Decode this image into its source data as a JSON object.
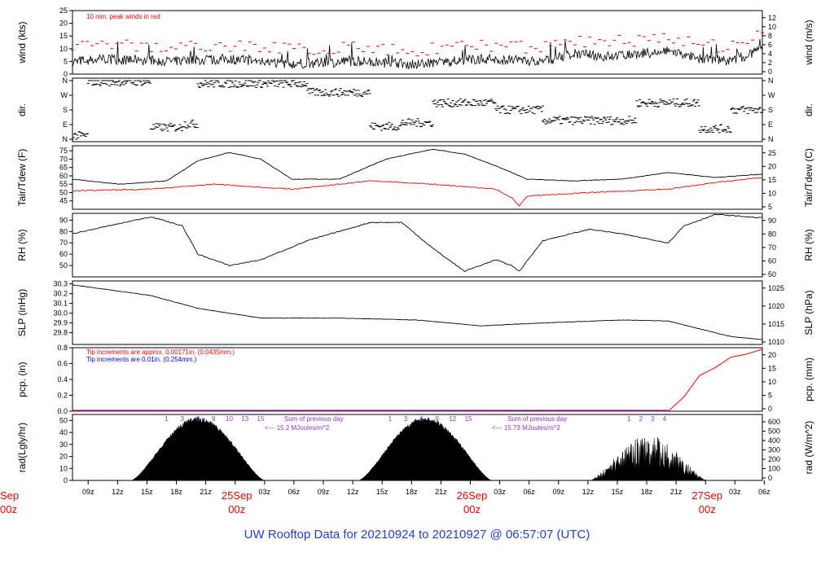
{
  "title": "UW Rooftop Data for 20210924  to  20210927 @ 06:57:07  (UTC)",
  "colors": {
    "frame": "#000000",
    "peak": "#ff0000",
    "precip_blue": "#0000ff",
    "rad_notes": "#9933cc",
    "day_labels": "#ff0000",
    "title": "#1f3fd6"
  },
  "time_axis": {
    "ticks": [
      "09z",
      "12z",
      "15z",
      "18z",
      "21z",
      "25Sep",
      "03z",
      "06z",
      "09z",
      "12z",
      "15z",
      "18z",
      "21z",
      "26Sep",
      "03z",
      "06z",
      "09z",
      "12z",
      "15z",
      "18z",
      "21z",
      "27Sep",
      "03z",
      "06z"
    ],
    "day_subs": [
      "00z",
      "00z",
      "00z"
    ],
    "left_cut_day": "Sep",
    "left_cut_sub": "00z"
  },
  "chart_data": [
    {
      "type": "line",
      "ylabel_left": "wind (kts)",
      "ylabel_right": "wind (m/s)",
      "ylim": [
        0,
        25
      ],
      "left_ticks": [
        "0",
        "5",
        "10",
        "15",
        "20",
        "25"
      ],
      "right_ticks": [
        "0",
        "2",
        "4",
        "6",
        "8",
        "10",
        "12"
      ],
      "annotation": "10 min. peak winds in red",
      "series_keypoints": [
        [
          0,
          5
        ],
        [
          4,
          6
        ],
        [
          12,
          5
        ],
        [
          20,
          6
        ],
        [
          28,
          4
        ],
        [
          36,
          5
        ],
        [
          44,
          4
        ],
        [
          52,
          6
        ],
        [
          60,
          5
        ],
        [
          64,
          8
        ],
        [
          68,
          7
        ],
        [
          76,
          9
        ],
        [
          80,
          6
        ],
        [
          84,
          5
        ],
        [
          88,
          10
        ]
      ]
    },
    {
      "type": "scatter",
      "ylabel_left": "dir.",
      "ylabel_right": "dir.",
      "left_ticks": [
        "N",
        "E",
        "S",
        "W",
        "N"
      ],
      "right_ticks": [
        "N",
        "E",
        "S",
        "W",
        "N"
      ]
    },
    {
      "type": "line",
      "ylabel_left": "Tair/Tdew (F)",
      "ylabel_right": "Tair/Tdew (C)",
      "ylim": [
        40,
        78
      ],
      "left_ticks": [
        "45",
        "50",
        "55",
        "60",
        "65",
        "70",
        "75"
      ],
      "right_ticks": [
        "5",
        "10",
        "15",
        "20",
        "25"
      ],
      "tair_keypoints": [
        [
          0,
          58
        ],
        [
          6,
          55
        ],
        [
          12,
          57
        ],
        [
          16,
          69
        ],
        [
          20,
          74
        ],
        [
          24,
          70
        ],
        [
          28,
          58
        ],
        [
          34,
          58
        ],
        [
          40,
          70
        ],
        [
          46,
          76
        ],
        [
          50,
          73
        ],
        [
          54,
          66
        ],
        [
          58,
          58
        ],
        [
          64,
          57
        ],
        [
          70,
          58
        ],
        [
          76,
          62
        ],
        [
          82,
          59
        ],
        [
          88,
          61
        ]
      ],
      "tdew_keypoints": [
        [
          0,
          51
        ],
        [
          10,
          52
        ],
        [
          18,
          55
        ],
        [
          28,
          52
        ],
        [
          38,
          57
        ],
        [
          46,
          55
        ],
        [
          54,
          52
        ],
        [
          56,
          47
        ],
        [
          57,
          42
        ],
        [
          58,
          48
        ],
        [
          66,
          50
        ],
        [
          76,
          52
        ],
        [
          82,
          56
        ],
        [
          88,
          59
        ]
      ]
    },
    {
      "type": "line",
      "ylabel_left": "RH (%)",
      "ylabel_right": "RH (%)",
      "ylim": [
        40,
        96
      ],
      "left_ticks": [
        "50",
        "60",
        "70",
        "80",
        "90"
      ],
      "right_ticks": [
        "50",
        "60",
        "70",
        "80",
        "90"
      ],
      "series_keypoints": [
        [
          0,
          78
        ],
        [
          10,
          93
        ],
        [
          14,
          85
        ],
        [
          16,
          60
        ],
        [
          20,
          50
        ],
        [
          24,
          55
        ],
        [
          30,
          72
        ],
        [
          38,
          88
        ],
        [
          42,
          88
        ],
        [
          46,
          65
        ],
        [
          50,
          45
        ],
        [
          54,
          55
        ],
        [
          56,
          50
        ],
        [
          57,
          45
        ],
        [
          60,
          72
        ],
        [
          66,
          82
        ],
        [
          70,
          78
        ],
        [
          76,
          70
        ],
        [
          78,
          85
        ],
        [
          82,
          95
        ],
        [
          88,
          92
        ]
      ]
    },
    {
      "type": "line",
      "ylabel_left": "SLP (inHg)",
      "ylabel_right": "SLP (hPa)",
      "ylim": [
        29.68,
        30.33
      ],
      "left_ticks": [
        "29.8",
        "29.9",
        "30.0",
        "30.1",
        "30.2",
        "30.3"
      ],
      "right_ticks": [
        "1010",
        "1015",
        "1020",
        "1025"
      ],
      "series_keypoints": [
        [
          0,
          30.29
        ],
        [
          10,
          30.18
        ],
        [
          16,
          30.05
        ],
        [
          24,
          29.95
        ],
        [
          34,
          29.95
        ],
        [
          44,
          29.93
        ],
        [
          52,
          29.87
        ],
        [
          60,
          29.9
        ],
        [
          70,
          29.93
        ],
        [
          76,
          29.92
        ],
        [
          84,
          29.76
        ],
        [
          88,
          29.73
        ]
      ]
    },
    {
      "type": "line",
      "ylabel_left": "pcp. (in)",
      "ylabel_right": "pcp. (mm)",
      "ylim": [
        0,
        0.8
      ],
      "left_ticks": [
        "0.0",
        "0.2",
        "0.4",
        "0.6",
        "0.8"
      ],
      "right_ticks": [
        "0",
        "5",
        "10",
        "15",
        "20"
      ],
      "notes": [
        "Tip increments are approx. 0.00171in. (0.0435mm.)",
        "Tip increments are 0.01in. (0.254mm.)"
      ],
      "series_keypoints": [
        [
          0,
          0
        ],
        [
          76,
          0
        ],
        [
          78,
          0.18
        ],
        [
          80,
          0.45
        ],
        [
          82,
          0.55
        ],
        [
          84,
          0.68
        ],
        [
          86,
          0.72
        ],
        [
          88,
          0.78
        ]
      ]
    },
    {
      "type": "area",
      "ylabel_left": "rad(Lgly/hr)",
      "ylabel_right": "rad (W/m^2)",
      "ylim": [
        0,
        55
      ],
      "left_ticks": [
        "0",
        "10",
        "20",
        "30",
        "40",
        "50"
      ],
      "right_ticks": [
        "0",
        "100",
        "200",
        "300",
        "400",
        "500",
        "600"
      ],
      "hour_labels_day1": [
        "1",
        "3",
        "6",
        "9",
        "10",
        "13",
        "15"
      ],
      "hour_labels_day2": [
        "1",
        "3",
        "6",
        "9",
        "12",
        "15"
      ],
      "hour_labels_day3": [
        "1",
        "2",
        "3",
        "4"
      ],
      "sum_day1": [
        "Sum of previous day",
        "<--- 15.2 MJoules/m^2"
      ],
      "sum_day2": [
        "Sum of previous day",
        "<--- 15.73 MJoules/m^2"
      ]
    }
  ]
}
